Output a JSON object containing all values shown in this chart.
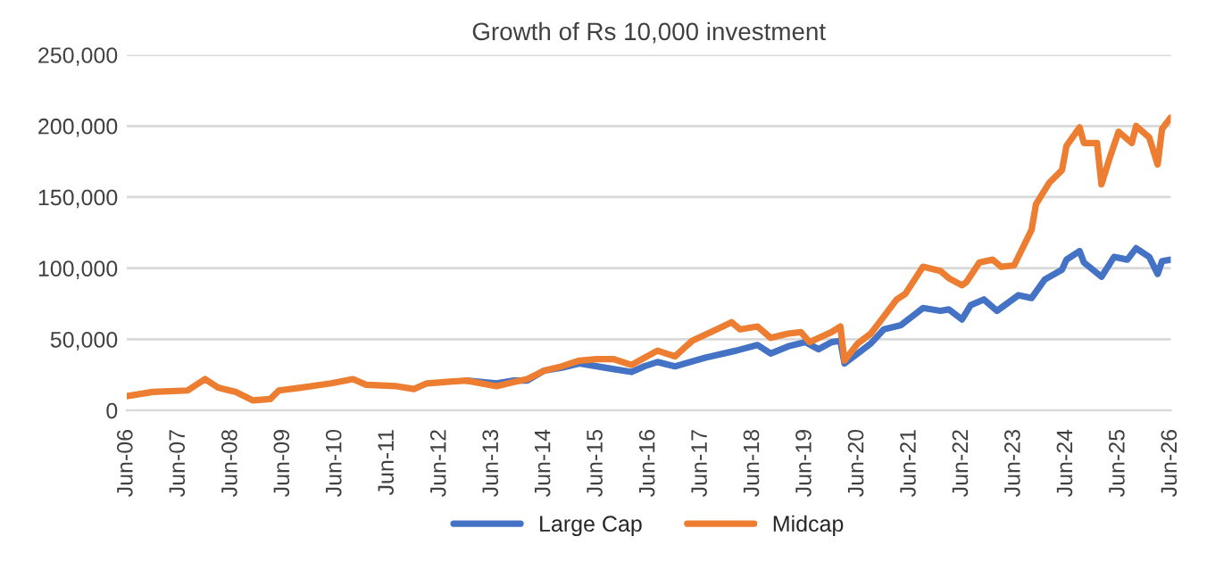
{
  "chart_data": {
    "type": "line",
    "title": "Growth of Rs 10,000 investment",
    "xlim": [
      "2006-06",
      "2026-06"
    ],
    "xticks": [
      {
        "value": "2006-06",
        "label": "Jun-06"
      },
      {
        "value": "2007-06",
        "label": "Jun-07"
      },
      {
        "value": "2008-06",
        "label": "Jun-08"
      },
      {
        "value": "2009-06",
        "label": "Jun-09"
      },
      {
        "value": "2010-06",
        "label": "Jun-10"
      },
      {
        "value": "2011-06",
        "label": "Jun-11"
      },
      {
        "value": "2012-06",
        "label": "Jun-12"
      },
      {
        "value": "2013-06",
        "label": "Jun-13"
      },
      {
        "value": "2014-06",
        "label": "Jun-14"
      },
      {
        "value": "2015-06",
        "label": "Jun-15"
      },
      {
        "value": "2016-06",
        "label": "Jun-16"
      },
      {
        "value": "2017-06",
        "label": "Jun-17"
      },
      {
        "value": "2018-06",
        "label": "Jun-18"
      },
      {
        "value": "2019-06",
        "label": "Jun-19"
      },
      {
        "value": "2020-06",
        "label": "Jun-20"
      },
      {
        "value": "2021-06",
        "label": "Jun-21"
      },
      {
        "value": "2022-06",
        "label": "Jun-22"
      },
      {
        "value": "2023-06",
        "label": "Jun-23"
      },
      {
        "value": "2024-06",
        "label": "Jun-24"
      },
      {
        "value": "2025-06",
        "label": "Jun-25"
      },
      {
        "value": "2026-06",
        "label": "Jun-26"
      }
    ],
    "ylim": [
      0,
      250000
    ],
    "yticks": [
      {
        "value": 0,
        "label": "0"
      },
      {
        "value": 50000,
        "label": "50,000"
      },
      {
        "value": 100000,
        "label": "100,000"
      },
      {
        "value": 150000,
        "label": "150,000"
      },
      {
        "value": 200000,
        "label": "200,000"
      },
      {
        "value": 250000,
        "label": "250,000"
      }
    ],
    "grid": "y",
    "legend": "bottom",
    "marker": "none",
    "line_style": "solid",
    "series": [
      {
        "name": "Large Cap",
        "color": "#4472c4",
        "x": [
          "2012-12",
          "2013-07",
          "2013-11",
          "2014-02",
          "2014-06",
          "2014-10",
          "2015-02",
          "2015-06",
          "2015-10",
          "2016-02",
          "2016-05",
          "2016-08",
          "2016-12",
          "2017-07",
          "2018-02",
          "2018-07",
          "2018-10",
          "2019-02",
          "2019-06",
          "2019-09",
          "2019-12",
          "2020-02",
          "2020-03",
          "2020-06",
          "2020-09",
          "2020-12",
          "2021-04",
          "2021-09",
          "2022-01",
          "2022-03",
          "2022-06",
          "2022-08",
          "2022-11",
          "2023-02",
          "2023-07",
          "2023-10",
          "2024-01",
          "2024-05",
          "2024-06",
          "2024-09",
          "2024-10",
          "2025-02",
          "2025-05",
          "2025-08",
          "2025-10",
          "2026-01",
          "2026-03",
          "2026-04",
          "2026-06"
        ],
        "values": [
          21000,
          19000,
          21000,
          21000,
          28000,
          30000,
          33000,
          31000,
          29000,
          27000,
          31000,
          34000,
          31000,
          37000,
          42000,
          46000,
          40000,
          45000,
          48000,
          43000,
          48000,
          49000,
          33000,
          40000,
          47000,
          57000,
          60000,
          72000,
          70000,
          71000,
          64000,
          74000,
          78000,
          70000,
          81000,
          79000,
          92000,
          99000,
          106000,
          112000,
          104000,
          94000,
          108000,
          106000,
          114000,
          108000,
          96000,
          105000,
          106000
        ]
      },
      {
        "name": "Midcap",
        "color": "#ed7d31",
        "x": [
          "2006-06",
          "2006-12",
          "2007-08",
          "2007-12",
          "2008-03",
          "2008-07",
          "2008-11",
          "2009-03",
          "2009-05",
          "2009-10",
          "2010-05",
          "2010-10",
          "2011-01",
          "2011-08",
          "2011-12",
          "2012-03",
          "2012-12",
          "2013-07",
          "2013-11",
          "2014-02",
          "2014-06",
          "2014-10",
          "2015-02",
          "2015-06",
          "2015-10",
          "2016-02",
          "2016-05",
          "2016-08",
          "2016-10",
          "2016-12",
          "2017-04",
          "2017-11",
          "2018-01",
          "2018-03",
          "2018-07",
          "2018-10",
          "2019-02",
          "2019-05",
          "2019-07",
          "2019-12",
          "2020-02",
          "2020-03",
          "2020-06",
          "2020-09",
          "2020-12",
          "2021-03",
          "2021-05",
          "2021-09",
          "2022-01",
          "2022-03",
          "2022-06",
          "2022-07",
          "2022-10",
          "2023-01",
          "2023-03",
          "2023-06",
          "2023-10",
          "2023-11",
          "2024-02",
          "2024-05",
          "2024-06",
          "2024-09",
          "2024-10",
          "2025-01",
          "2025-02",
          "2025-04",
          "2025-06",
          "2025-09",
          "2025-10",
          "2026-01",
          "2026-03",
          "2026-04",
          "2026-06"
        ],
        "values": [
          10000,
          13000,
          14000,
          22000,
          16000,
          13000,
          7000,
          8000,
          14000,
          16000,
          19000,
          22000,
          18000,
          17000,
          15000,
          19000,
          21000,
          17000,
          20000,
          22000,
          28000,
          31000,
          35000,
          36000,
          36000,
          32000,
          37000,
          42000,
          40000,
          38000,
          49000,
          59000,
          62000,
          57000,
          59000,
          51000,
          54000,
          55000,
          48000,
          55000,
          59000,
          35000,
          47000,
          54000,
          66000,
          78000,
          82000,
          101000,
          98000,
          93000,
          88000,
          90000,
          104000,
          106000,
          101000,
          102000,
          127000,
          145000,
          160000,
          169000,
          186000,
          199000,
          188000,
          188000,
          159000,
          178000,
          196000,
          188000,
          200000,
          192000,
          173000,
          198000,
          206000
        ]
      }
    ]
  }
}
